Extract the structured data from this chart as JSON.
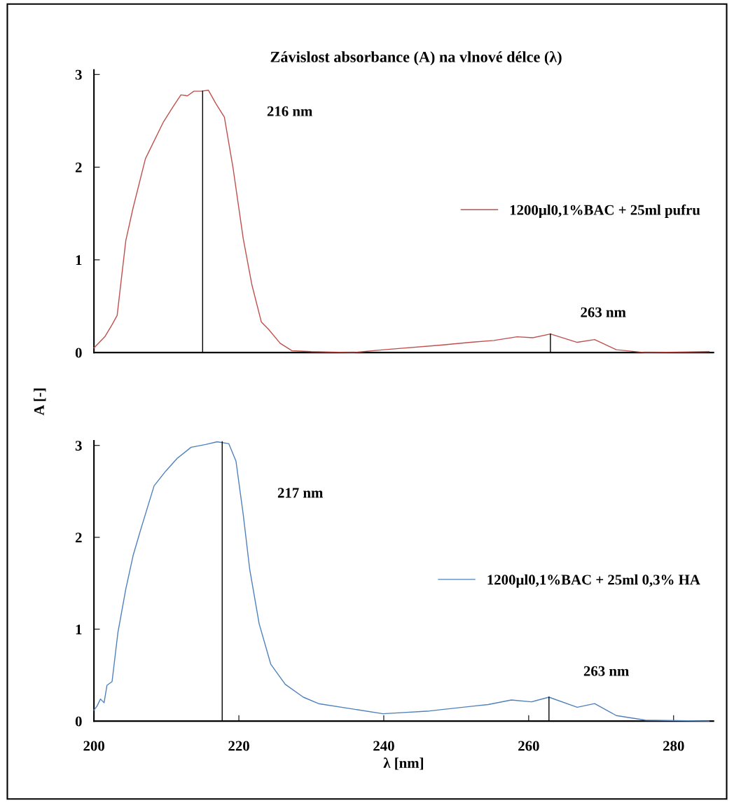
{
  "chart_data": [
    {
      "type": "line",
      "title": "Závislost absorbance (A) na vlnové délce (λ)",
      "ylabel": "A [-]",
      "xlim": [
        200,
        285.5
      ],
      "ylim": [
        0,
        3.05
      ],
      "yticks": [
        0,
        1,
        2,
        3
      ],
      "tick_labels": "y",
      "legend": "center right",
      "grid": false,
      "series": [
        {
          "name": "1200µl0,1%BAC + 25ml pufru",
          "color": "#c0504d",
          "x": [
            200,
            201.5,
            202.5,
            203.2,
            204.4,
            205.4,
            207.1,
            209.6,
            210.9,
            212.0,
            212.9,
            213.8,
            214.8,
            215.8,
            216.8,
            218.0,
            219.2,
            220.6,
            221.8,
            223.1,
            224.1,
            225.7,
            227.3,
            230,
            235.8,
            240,
            247.9,
            252,
            255.2,
            258.4,
            260.6,
            263.0,
            266.7,
            269.1,
            272.1,
            276.1,
            284.9
          ],
          "values": [
            0.05,
            0.17,
            0.3,
            0.4,
            1.21,
            1.56,
            2.09,
            2.49,
            2.65,
            2.78,
            2.77,
            2.82,
            2.82,
            2.83,
            2.69,
            2.54,
            1.99,
            1.23,
            0.73,
            0.33,
            0.25,
            0.1,
            0.02,
            0.01,
            0.0,
            0.03,
            0.08,
            0.11,
            0.13,
            0.17,
            0.16,
            0.2,
            0.11,
            0.14,
            0.03,
            0.0,
            0.01
          ]
        },
        {
          "type": "line",
          "color": "#000000",
          "x": [
            215,
            215
          ],
          "values": [
            0,
            2.82
          ]
        },
        {
          "type": "line",
          "color": "#000000",
          "x": [
            263,
            263
          ],
          "values": [
            0,
            0.2
          ]
        }
      ],
      "annotations": [
        "216 nm",
        "263 nm"
      ]
    },
    {
      "type": "line",
      "xlabel": "λ [nm]",
      "xlim": [
        200,
        285.5
      ],
      "ylim": [
        0,
        3.05
      ],
      "xticks": [
        200,
        220,
        240,
        260,
        280
      ],
      "yticks": [
        0,
        1,
        2,
        3
      ],
      "legend": "center right",
      "grid": false,
      "series": [
        {
          "name": "1200µl0,1%BAC + 25ml 0,3% HA",
          "color": "#4f81bd",
          "x": [
            200,
            200.4,
            200.9,
            201.4,
            201.8,
            202.5,
            203.3,
            204.4,
            205.4,
            206.4,
            208.3,
            209.9,
            211.5,
            213.4,
            215.4,
            217.0,
            218.6,
            219.6,
            220.6,
            221.5,
            222.8,
            224.4,
            226.4,
            228.9,
            231,
            239.9,
            246.3,
            252.0,
            254.4,
            257.6,
            260.4,
            262.8,
            266.7,
            269.1,
            272.1,
            276.1,
            284.9
          ],
          "values": [
            0.12,
            0.16,
            0.24,
            0.2,
            0.39,
            0.43,
            0.96,
            1.44,
            1.8,
            2.07,
            2.56,
            2.72,
            2.86,
            2.98,
            3.01,
            3.04,
            3.02,
            2.83,
            2.25,
            1.65,
            1.06,
            0.62,
            0.4,
            0.26,
            0.19,
            0.08,
            0.11,
            0.16,
            0.18,
            0.23,
            0.21,
            0.26,
            0.15,
            0.19,
            0.06,
            0.01,
            0.0
          ]
        },
        {
          "type": "line",
          "color": "#000000",
          "x": [
            217.7,
            217.7
          ],
          "values": [
            0,
            3.04
          ]
        },
        {
          "type": "line",
          "color": "#000000",
          "x": [
            262.8,
            262.8
          ],
          "values": [
            0,
            0.26
          ]
        }
      ],
      "annotations": [
        "217 nm",
        "263 nm"
      ]
    }
  ]
}
